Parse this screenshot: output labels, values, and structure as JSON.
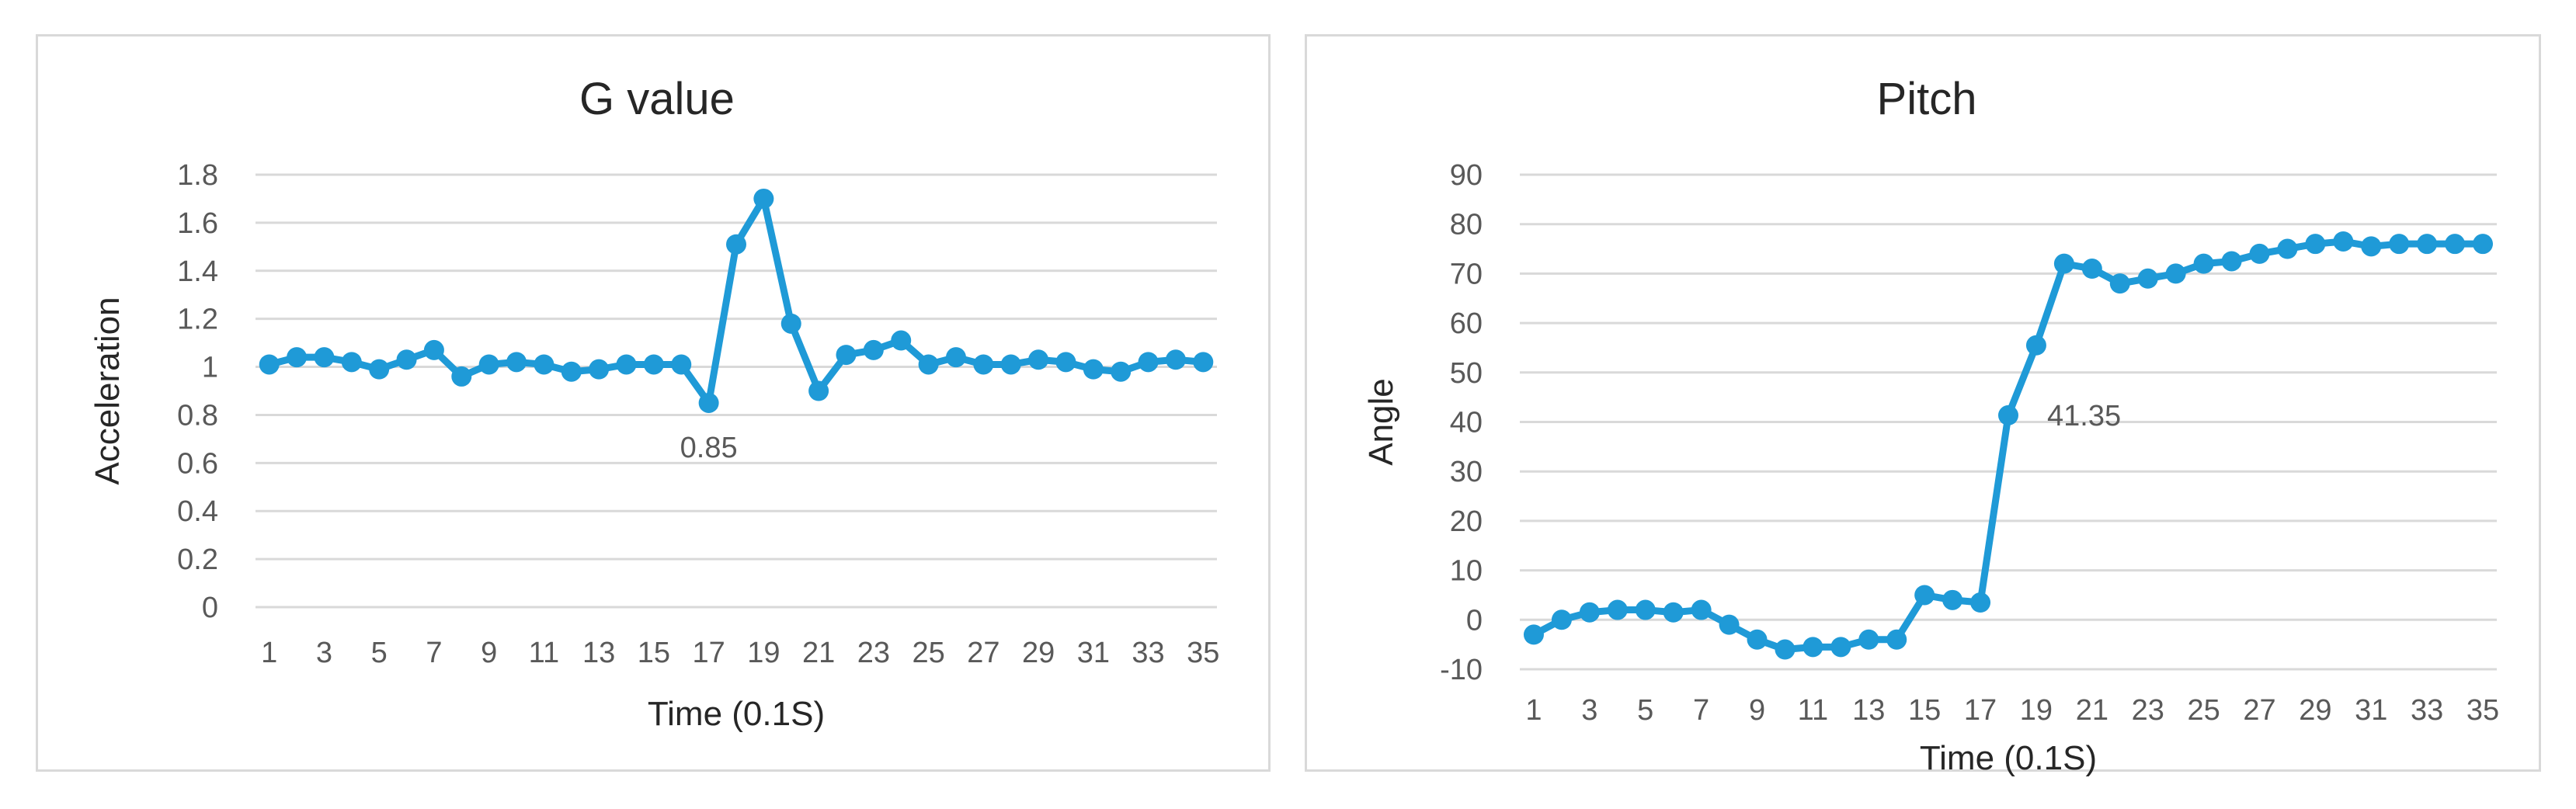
{
  "chart_data": [
    {
      "type": "line",
      "title": "G value",
      "xlabel": "Time (0.1S)",
      "ylabel": "Acceleration",
      "ylim": [
        0,
        1.8
      ],
      "y_ticks": [
        "0",
        "0.2",
        "0.4",
        "0.6",
        "0.8",
        "1",
        "1.2",
        "1.4",
        "1.6",
        "1.8"
      ],
      "x": [
        1,
        2,
        3,
        4,
        5,
        6,
        7,
        8,
        9,
        10,
        11,
        12,
        13,
        14,
        15,
        16,
        17,
        18,
        19,
        20,
        21,
        22,
        23,
        24,
        25,
        26,
        27,
        28,
        29,
        30,
        31,
        32,
        33,
        34,
        35
      ],
      "x_ticks": [
        "1",
        "3",
        "5",
        "7",
        "9",
        "11",
        "13",
        "15",
        "17",
        "19",
        "21",
        "23",
        "25",
        "27",
        "29",
        "31",
        "33",
        "35"
      ],
      "grid": true,
      "legend": "none",
      "color": "#1f9ad7",
      "series": [
        {
          "values": [
            1.01,
            1.04,
            1.04,
            1.02,
            0.99,
            1.03,
            1.07,
            0.96,
            1.01,
            1.02,
            1.01,
            0.98,
            0.99,
            1.01,
            1.01,
            1.01,
            0.85,
            1.51,
            1.7,
            1.18,
            0.9,
            1.05,
            1.07,
            1.11,
            1.01,
            1.04,
            1.01,
            1.01,
            1.03,
            1.02,
            0.99,
            0.98,
            1.02,
            1.03,
            1.02
          ]
        }
      ],
      "annotations": [
        {
          "x": 17,
          "y": 0.85,
          "text": "0.85",
          "position": "below"
        }
      ]
    },
    {
      "type": "line",
      "title": "Pitch",
      "xlabel": "Time (0.1S)",
      "ylabel": "Angle",
      "ylim": [
        -10,
        90
      ],
      "y_ticks": [
        "-10",
        "0",
        "10",
        "20",
        "30",
        "40",
        "50",
        "60",
        "70",
        "80",
        "90"
      ],
      "x": [
        1,
        2,
        3,
        4,
        5,
        6,
        7,
        8,
        9,
        10,
        11,
        12,
        13,
        14,
        15,
        16,
        17,
        18,
        19,
        20,
        21,
        22,
        23,
        24,
        25,
        26,
        27,
        28,
        29,
        30,
        31,
        32,
        33,
        34,
        35
      ],
      "x_ticks": [
        "1",
        "3",
        "5",
        "7",
        "9",
        "11",
        "13",
        "15",
        "17",
        "19",
        "21",
        "23",
        "25",
        "27",
        "29",
        "31",
        "33",
        "35"
      ],
      "grid": true,
      "legend": "none",
      "color": "#1f9ad7",
      "series": [
        {
          "values": [
            -3,
            0,
            1.5,
            2,
            2,
            1.5,
            2,
            -1,
            -4,
            -6,
            -5.5,
            -5.5,
            -4,
            -4,
            5,
            4,
            3.5,
            41.35,
            55.5,
            72,
            71,
            68,
            69,
            70,
            72,
            72.5,
            74,
            75,
            76,
            76.5,
            75.5,
            76,
            76,
            76,
            76
          ]
        }
      ],
      "annotations": [
        {
          "x": 18,
          "y": 41.35,
          "text": "41.35",
          "position": "right"
        }
      ]
    }
  ]
}
